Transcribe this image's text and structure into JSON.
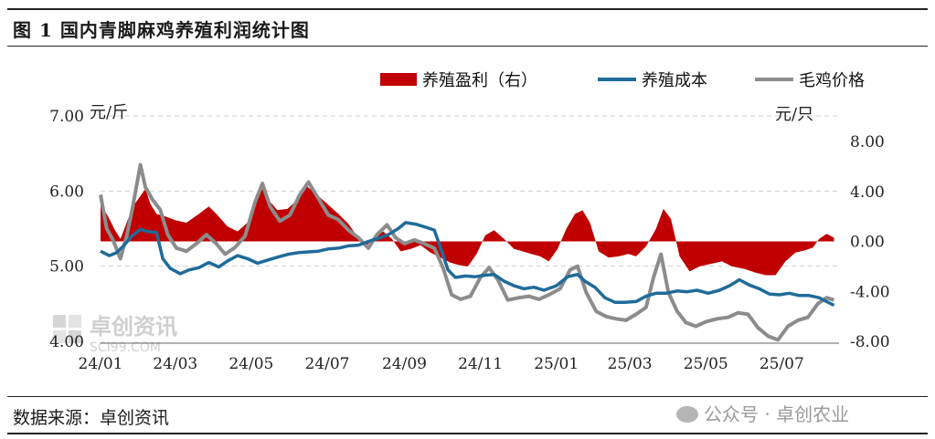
{
  "figure_title": "图 1  国内青脚麻鸡养殖利润统计图",
  "source": "数据来源：卓创资讯",
  "wechat_mark": "公众号 · 卓创农业",
  "watermark": {
    "brand": "卓创资讯",
    "domain": "SCI99.COM"
  },
  "colors": {
    "profit": "#c00000",
    "cost": "#1f6b9a",
    "price": "#8c8c8c"
  },
  "chart_data": {
    "type": "line",
    "left_axis": {
      "unit": "元/斤",
      "range": [
        4.0,
        7.0
      ],
      "ticks": [
        "7.00",
        "6.00",
        "5.00",
        "4.00"
      ]
    },
    "right_axis": {
      "unit": "元/只",
      "range": [
        -8.0,
        8.0
      ],
      "ticks": [
        "8.00",
        "4.00",
        "0.00",
        "-4.00",
        "-8.00"
      ]
    },
    "x_ticks": [
      "24/01",
      "24/03",
      "24/05",
      "24/07",
      "24/09",
      "24/11",
      "25/01",
      "25/03",
      "25/05",
      "25/07"
    ],
    "legend": {
      "placement": "top-right",
      "entries": [
        "养殖盈利（右）",
        "养殖成本",
        "毛鸡价格"
      ]
    },
    "grid": "horizontal-dashed",
    "series": [
      {
        "name": "养殖盈利（右）",
        "kind": "area",
        "axis": "right",
        "points": [
          [
            "2024-01-01",
            3.0
          ],
          [
            "2024-01-07",
            2.0
          ],
          [
            "2024-01-12",
            1.0
          ],
          [
            "2024-01-17",
            0.2
          ],
          [
            "2024-01-22",
            1.5
          ],
          [
            "2024-01-27",
            2.8
          ],
          [
            "2024-02-01",
            3.5
          ],
          [
            "2024-02-06",
            4.2
          ],
          [
            "2024-02-10",
            3.0
          ],
          [
            "2024-02-15",
            2.2
          ],
          [
            "2024-02-22",
            2.0
          ],
          [
            "2024-03-01",
            1.7
          ],
          [
            "2024-03-10",
            1.5
          ],
          [
            "2024-03-20",
            2.2
          ],
          [
            "2024-03-28",
            2.8
          ],
          [
            "2024-04-03",
            2.2
          ],
          [
            "2024-04-12",
            1.2
          ],
          [
            "2024-04-20",
            0.8
          ],
          [
            "2024-04-28",
            1.5
          ],
          [
            "2024-05-05",
            3.2
          ],
          [
            "2024-05-10",
            4.2
          ],
          [
            "2024-05-15",
            3.3
          ],
          [
            "2024-05-22",
            2.5
          ],
          [
            "2024-05-30",
            2.6
          ],
          [
            "2024-06-08",
            3.4
          ],
          [
            "2024-06-15",
            4.4
          ],
          [
            "2024-06-22",
            3.8
          ],
          [
            "2024-07-01",
            3.0
          ],
          [
            "2024-07-10",
            2.2
          ],
          [
            "2024-07-18",
            1.4
          ],
          [
            "2024-07-25",
            0.4
          ],
          [
            "2024-08-01",
            -0.4
          ],
          [
            "2024-08-08",
            0.3
          ],
          [
            "2024-08-15",
            0.8
          ],
          [
            "2024-08-22",
            0.2
          ],
          [
            "2024-08-29",
            -0.8
          ],
          [
            "2024-09-06",
            -0.6
          ],
          [
            "2024-09-14",
            -0.3
          ],
          [
            "2024-09-22",
            -0.9
          ],
          [
            "2024-09-30",
            -1.3
          ],
          [
            "2024-10-08",
            -1.7
          ],
          [
            "2024-10-15",
            -1.9
          ],
          [
            "2024-10-22",
            -2.0
          ],
          [
            "2024-10-29",
            -1.0
          ],
          [
            "2024-11-05",
            0.5
          ],
          [
            "2024-11-12",
            0.9
          ],
          [
            "2024-11-20",
            0.2
          ],
          [
            "2024-11-28",
            -0.6
          ],
          [
            "2024-12-05",
            -0.8
          ],
          [
            "2024-12-12",
            -1.0
          ],
          [
            "2024-12-19",
            -1.2
          ],
          [
            "2024-12-26",
            -1.6
          ],
          [
            "2025-01-02",
            -0.6
          ],
          [
            "2025-01-09",
            1.0
          ],
          [
            "2025-01-16",
            2.2
          ],
          [
            "2025-01-22",
            2.5
          ],
          [
            "2025-01-28",
            1.5
          ],
          [
            "2025-02-04",
            -0.8
          ],
          [
            "2025-02-12",
            -1.3
          ],
          [
            "2025-02-20",
            -1.2
          ],
          [
            "2025-02-28",
            -1.0
          ],
          [
            "2025-03-06",
            -1.2
          ],
          [
            "2025-03-14",
            -0.4
          ],
          [
            "2025-03-22",
            1.0
          ],
          [
            "2025-03-28",
            2.6
          ],
          [
            "2025-04-03",
            1.8
          ],
          [
            "2025-04-10",
            -1.2
          ],
          [
            "2025-04-18",
            -2.4
          ],
          [
            "2025-04-26",
            -2.0
          ],
          [
            "2025-05-05",
            -1.8
          ],
          [
            "2025-05-14",
            -1.6
          ],
          [
            "2025-05-22",
            -2.0
          ],
          [
            "2025-06-01",
            -2.2
          ],
          [
            "2025-06-10",
            -2.5
          ],
          [
            "2025-06-18",
            -2.7
          ],
          [
            "2025-06-26",
            -2.7
          ],
          [
            "2025-07-04",
            -1.6
          ],
          [
            "2025-07-12",
            -0.9
          ],
          [
            "2025-07-20",
            -0.7
          ],
          [
            "2025-07-26",
            -0.5
          ],
          [
            "2025-07-31",
            0.2
          ],
          [
            "2025-08-06",
            0.6
          ],
          [
            "2025-08-12",
            0.3
          ]
        ]
      },
      {
        "name": "养殖成本",
        "kind": "line",
        "axis": "left",
        "points": [
          [
            "2024-01-01",
            5.2
          ],
          [
            "2024-01-08",
            5.14
          ],
          [
            "2024-01-14",
            5.18
          ],
          [
            "2024-01-20",
            5.28
          ],
          [
            "2024-01-26",
            5.4
          ],
          [
            "2024-02-02",
            5.49
          ],
          [
            "2024-02-08",
            5.46
          ],
          [
            "2024-02-15",
            5.45
          ],
          [
            "2024-02-20",
            5.1
          ],
          [
            "2024-02-26",
            4.97
          ],
          [
            "2024-03-05",
            4.9
          ],
          [
            "2024-03-12",
            4.95
          ],
          [
            "2024-03-20",
            4.98
          ],
          [
            "2024-03-28",
            5.05
          ],
          [
            "2024-04-05",
            4.99
          ],
          [
            "2024-04-12",
            5.07
          ],
          [
            "2024-04-20",
            5.14
          ],
          [
            "2024-04-28",
            5.1
          ],
          [
            "2024-05-06",
            5.04
          ],
          [
            "2024-05-14",
            5.08
          ],
          [
            "2024-05-22",
            5.12
          ],
          [
            "2024-05-31",
            5.16
          ],
          [
            "2024-06-08",
            5.18
          ],
          [
            "2024-06-16",
            5.19
          ],
          [
            "2024-06-24",
            5.2
          ],
          [
            "2024-07-02",
            5.23
          ],
          [
            "2024-07-10",
            5.24
          ],
          [
            "2024-07-18",
            5.27
          ],
          [
            "2024-07-26",
            5.28
          ],
          [
            "2024-08-03",
            5.33
          ],
          [
            "2024-08-11",
            5.37
          ],
          [
            "2024-08-19",
            5.42
          ],
          [
            "2024-08-27",
            5.5
          ],
          [
            "2024-09-02",
            5.58
          ],
          [
            "2024-09-10",
            5.56
          ],
          [
            "2024-09-18",
            5.52
          ],
          [
            "2024-09-25",
            5.48
          ],
          [
            "2024-10-01",
            5.2
          ],
          [
            "2024-10-06",
            4.95
          ],
          [
            "2024-10-12",
            4.85
          ],
          [
            "2024-10-20",
            4.87
          ],
          [
            "2024-10-28",
            4.86
          ],
          [
            "2024-11-05",
            4.88
          ],
          [
            "2024-11-12",
            4.89
          ],
          [
            "2024-11-20",
            4.8
          ],
          [
            "2024-11-28",
            4.74
          ],
          [
            "2024-12-06",
            4.7
          ],
          [
            "2024-12-14",
            4.72
          ],
          [
            "2024-12-22",
            4.68
          ],
          [
            "2025-01-01",
            4.74
          ],
          [
            "2025-01-10",
            4.86
          ],
          [
            "2025-01-18",
            4.89
          ],
          [
            "2025-01-24",
            4.8
          ],
          [
            "2025-02-01",
            4.72
          ],
          [
            "2025-02-09",
            4.58
          ],
          [
            "2025-02-17",
            4.52
          ],
          [
            "2025-02-25",
            4.52
          ],
          [
            "2025-03-06",
            4.53
          ],
          [
            "2025-03-14",
            4.6
          ],
          [
            "2025-03-22",
            4.64
          ],
          [
            "2025-03-30",
            4.64
          ],
          [
            "2025-04-08",
            4.67
          ],
          [
            "2025-04-16",
            4.66
          ],
          [
            "2025-04-24",
            4.68
          ],
          [
            "2025-05-03",
            4.64
          ],
          [
            "2025-05-12",
            4.68
          ],
          [
            "2025-05-20",
            4.74
          ],
          [
            "2025-05-28",
            4.82
          ],
          [
            "2025-06-05",
            4.75
          ],
          [
            "2025-06-13",
            4.7
          ],
          [
            "2025-06-21",
            4.63
          ],
          [
            "2025-06-29",
            4.62
          ],
          [
            "2025-07-07",
            4.64
          ],
          [
            "2025-07-15",
            4.61
          ],
          [
            "2025-07-23",
            4.61
          ],
          [
            "2025-07-31",
            4.58
          ],
          [
            "2025-08-06",
            4.53
          ],
          [
            "2025-08-12",
            4.48
          ]
        ]
      },
      {
        "name": "毛鸡价格",
        "kind": "line",
        "axis": "left",
        "points": [
          [
            "2024-01-01",
            5.95
          ],
          [
            "2024-01-06",
            5.5
          ],
          [
            "2024-01-11",
            5.35
          ],
          [
            "2024-01-17",
            5.1
          ],
          [
            "2024-01-22",
            5.4
          ],
          [
            "2024-01-27",
            5.8
          ],
          [
            "2024-02-02",
            6.35
          ],
          [
            "2024-02-06",
            6.05
          ],
          [
            "2024-02-12",
            5.88
          ],
          [
            "2024-02-18",
            5.75
          ],
          [
            "2024-02-24",
            5.42
          ],
          [
            "2024-03-02",
            5.24
          ],
          [
            "2024-03-10",
            5.2
          ],
          [
            "2024-03-18",
            5.3
          ],
          [
            "2024-03-26",
            5.42
          ],
          [
            "2024-04-03",
            5.3
          ],
          [
            "2024-04-10",
            5.16
          ],
          [
            "2024-04-18",
            5.25
          ],
          [
            "2024-04-26",
            5.4
          ],
          [
            "2024-05-04",
            5.85
          ],
          [
            "2024-05-10",
            6.1
          ],
          [
            "2024-05-16",
            5.8
          ],
          [
            "2024-05-24",
            5.6
          ],
          [
            "2024-06-01",
            5.68
          ],
          [
            "2024-06-09",
            5.95
          ],
          [
            "2024-06-16",
            6.12
          ],
          [
            "2024-06-24",
            5.9
          ],
          [
            "2024-07-02",
            5.68
          ],
          [
            "2024-07-10",
            5.62
          ],
          [
            "2024-07-18",
            5.48
          ],
          [
            "2024-07-26",
            5.38
          ],
          [
            "2024-08-03",
            5.24
          ],
          [
            "2024-08-10",
            5.42
          ],
          [
            "2024-08-18",
            5.55
          ],
          [
            "2024-08-25",
            5.38
          ],
          [
            "2024-09-01",
            5.3
          ],
          [
            "2024-09-09",
            5.35
          ],
          [
            "2024-09-17",
            5.3
          ],
          [
            "2024-09-25",
            5.24
          ],
          [
            "2024-10-02",
            4.98
          ],
          [
            "2024-10-09",
            4.62
          ],
          [
            "2024-10-16",
            4.56
          ],
          [
            "2024-10-24",
            4.6
          ],
          [
            "2024-11-01",
            4.85
          ],
          [
            "2024-11-08",
            4.98
          ],
          [
            "2024-11-15",
            4.82
          ],
          [
            "2024-11-23",
            4.55
          ],
          [
            "2024-12-02",
            4.58
          ],
          [
            "2024-12-10",
            4.6
          ],
          [
            "2024-12-18",
            4.56
          ],
          [
            "2024-12-26",
            4.62
          ],
          [
            "2025-01-04",
            4.7
          ],
          [
            "2025-01-12",
            4.95
          ],
          [
            "2025-01-18",
            5.0
          ],
          [
            "2025-01-25",
            4.65
          ],
          [
            "2025-02-02",
            4.4
          ],
          [
            "2025-02-10",
            4.33
          ],
          [
            "2025-02-18",
            4.3
          ],
          [
            "2025-02-26",
            4.28
          ],
          [
            "2025-03-06",
            4.36
          ],
          [
            "2025-03-14",
            4.45
          ],
          [
            "2025-03-20",
            4.85
          ],
          [
            "2025-03-26",
            5.16
          ],
          [
            "2025-04-01",
            4.65
          ],
          [
            "2025-04-08",
            4.4
          ],
          [
            "2025-04-15",
            4.25
          ],
          [
            "2025-04-23",
            4.2
          ],
          [
            "2025-05-01",
            4.26
          ],
          [
            "2025-05-10",
            4.3
          ],
          [
            "2025-05-19",
            4.32
          ],
          [
            "2025-05-27",
            4.38
          ],
          [
            "2025-06-04",
            4.36
          ],
          [
            "2025-06-12",
            4.18
          ],
          [
            "2025-06-20",
            4.07
          ],
          [
            "2025-06-28",
            4.02
          ],
          [
            "2025-07-06",
            4.2
          ],
          [
            "2025-07-14",
            4.28
          ],
          [
            "2025-07-22",
            4.32
          ],
          [
            "2025-07-30",
            4.5
          ],
          [
            "2025-08-06",
            4.58
          ],
          [
            "2025-08-12",
            4.55
          ]
        ]
      }
    ]
  }
}
